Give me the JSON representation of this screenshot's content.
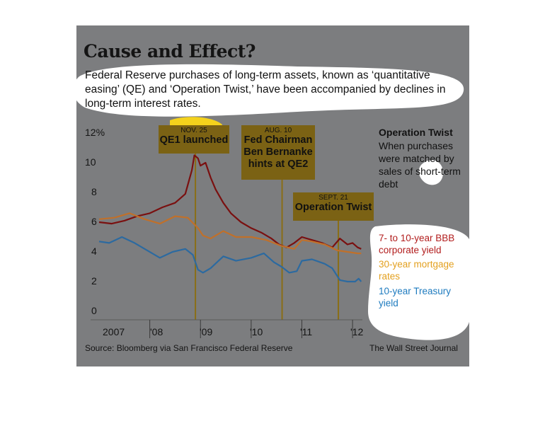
{
  "header": {
    "title": "Cause and Effect?",
    "subtitle": "Federal Reserve purchases of long-term assets, known as ‘quantitative easing’ (QE) and ‘Operation Twist,’ have been accompanied by declines in long-term interest rates."
  },
  "events": [
    {
      "date": "NOV. 25",
      "label": "QE1 launched"
    },
    {
      "date": "AUG. 10",
      "label": "Fed Chairman Ben Bernanke hints at QE2"
    },
    {
      "date": "SEPT. 21",
      "label": "Operation Twist"
    }
  ],
  "sidebar": {
    "heading": "Operation Twist",
    "text": "When purchases were matched by sales of short-term debt"
  },
  "legend": [
    {
      "label": "7- to 10-year BBB corporate yield",
      "color": "#b21d1d"
    },
    {
      "label": "30-year mortgage rates",
      "color": "#e3a01f"
    },
    {
      "label": "10-year Treasury yield",
      "color": "#1e7bbf"
    }
  ],
  "footer": {
    "source": "Source: Bloomberg via San Francisco Federal Reserve",
    "credit": "The Wall Street Journal"
  },
  "colors": {
    "panel": "#7c7d7f",
    "event_box": "#7b6214",
    "event_line": "#8a6e16"
  },
  "chart_data": {
    "type": "line",
    "y_ticks": [
      "12%",
      "10",
      "8",
      "6",
      "4",
      "2",
      "0"
    ],
    "x_ticks": [
      "2007",
      "'08",
      "'09",
      "'10",
      "'11",
      "'12"
    ],
    "ylim": [
      0,
      12
    ],
    "xlim": [
      2007.0,
      2012.25
    ],
    "events_x": [
      2008.9,
      2010.61,
      2011.72
    ],
    "series": [
      {
        "name": "7- to 10-year BBB corporate yield",
        "color": "#7a1010",
        "x": [
          2007.0,
          2007.25,
          2007.5,
          2007.75,
          2008.0,
          2008.25,
          2008.5,
          2008.7,
          2008.83,
          2008.88,
          2008.95,
          2009.0,
          2009.1,
          2009.2,
          2009.3,
          2009.45,
          2009.6,
          2009.8,
          2010.0,
          2010.2,
          2010.4,
          2010.55,
          2010.7,
          2010.85,
          2011.0,
          2011.2,
          2011.4,
          2011.6,
          2011.75,
          2011.9,
          2012.0,
          2012.1,
          2012.17
        ],
        "values": [
          6.0,
          5.9,
          6.1,
          6.4,
          6.6,
          7.0,
          7.3,
          7.9,
          9.5,
          10.5,
          10.3,
          9.8,
          10.0,
          9.0,
          8.2,
          7.3,
          6.6,
          6.0,
          5.6,
          5.3,
          4.9,
          4.5,
          4.3,
          4.6,
          5.0,
          4.8,
          4.6,
          4.3,
          4.9,
          4.5,
          4.6,
          4.3,
          4.2
        ]
      },
      {
        "name": "30-year mortgage rates",
        "color": "#c0702a",
        "x": [
          2007.0,
          2007.3,
          2007.6,
          2007.9,
          2008.2,
          2008.5,
          2008.75,
          2008.95,
          2009.05,
          2009.2,
          2009.45,
          2009.7,
          2010.0,
          2010.3,
          2010.6,
          2010.85,
          2011.0,
          2011.2,
          2011.45,
          2011.7,
          2011.9,
          2012.1,
          2012.17
        ],
        "values": [
          6.2,
          6.3,
          6.6,
          6.2,
          5.9,
          6.4,
          6.3,
          5.6,
          5.1,
          4.9,
          5.4,
          5.0,
          5.0,
          4.8,
          4.4,
          4.2,
          4.8,
          4.7,
          4.5,
          4.1,
          4.0,
          3.9,
          3.9
        ]
      },
      {
        "name": "10-year Treasury yield",
        "color": "#2c6aa0",
        "x": [
          2007.0,
          2007.2,
          2007.45,
          2007.7,
          2007.95,
          2008.2,
          2008.45,
          2008.7,
          2008.85,
          2008.95,
          2009.05,
          2009.2,
          2009.45,
          2009.7,
          2010.0,
          2010.25,
          2010.45,
          2010.6,
          2010.75,
          2010.9,
          2011.0,
          2011.2,
          2011.45,
          2011.6,
          2011.75,
          2011.9,
          2012.05,
          2012.12,
          2012.17
        ],
        "values": [
          4.7,
          4.6,
          5.0,
          4.6,
          4.1,
          3.6,
          4.0,
          4.2,
          3.8,
          2.8,
          2.6,
          2.9,
          3.7,
          3.4,
          3.6,
          3.9,
          3.3,
          3.0,
          2.6,
          2.7,
          3.4,
          3.5,
          3.2,
          2.9,
          2.1,
          2.0,
          2.0,
          2.2,
          2.0
        ]
      }
    ]
  }
}
